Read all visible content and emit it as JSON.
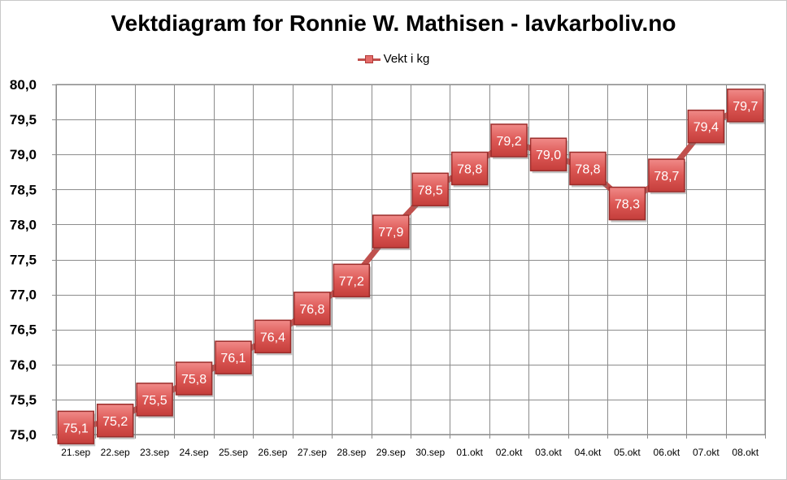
{
  "chart_data": {
    "type": "line",
    "title": "Vektdiagram for Ronnie W. Mathisen - lavkarboliv.no",
    "xlabel": "",
    "ylabel": "",
    "ylim": [
      75.0,
      80.0
    ],
    "y_ticks": [
      "75,0",
      "75,5",
      "76,0",
      "76,5",
      "77,0",
      "77,5",
      "78,0",
      "78,5",
      "79,0",
      "79,5",
      "80,0"
    ],
    "grid": true,
    "legend_position": "top-center",
    "categories": [
      "21.sep",
      "22.sep",
      "23.sep",
      "24.sep",
      "25.sep",
      "26.sep",
      "27.sep",
      "28.sep",
      "29.sep",
      "30.sep",
      "01.okt",
      "02.okt",
      "03.okt",
      "04.okt",
      "05.okt",
      "06.okt",
      "07.okt",
      "08.okt"
    ],
    "series": [
      {
        "name": "Vekt i kg",
        "color": "#c0504d",
        "values": [
          75.1,
          75.2,
          75.5,
          75.8,
          76.1,
          76.4,
          76.8,
          77.2,
          77.9,
          78.5,
          78.8,
          79.2,
          79.0,
          78.8,
          78.3,
          78.7,
          79.4,
          79.7
        ],
        "labels": [
          "75,1",
          "75,2",
          "75,5",
          "75,8",
          "76,1",
          "76,4",
          "76,8",
          "77,2",
          "77,9",
          "78,5",
          "78,8",
          "79,2",
          "79,0",
          "78,8",
          "78,3",
          "78,7",
          "79,4",
          "79,7"
        ]
      }
    ]
  }
}
